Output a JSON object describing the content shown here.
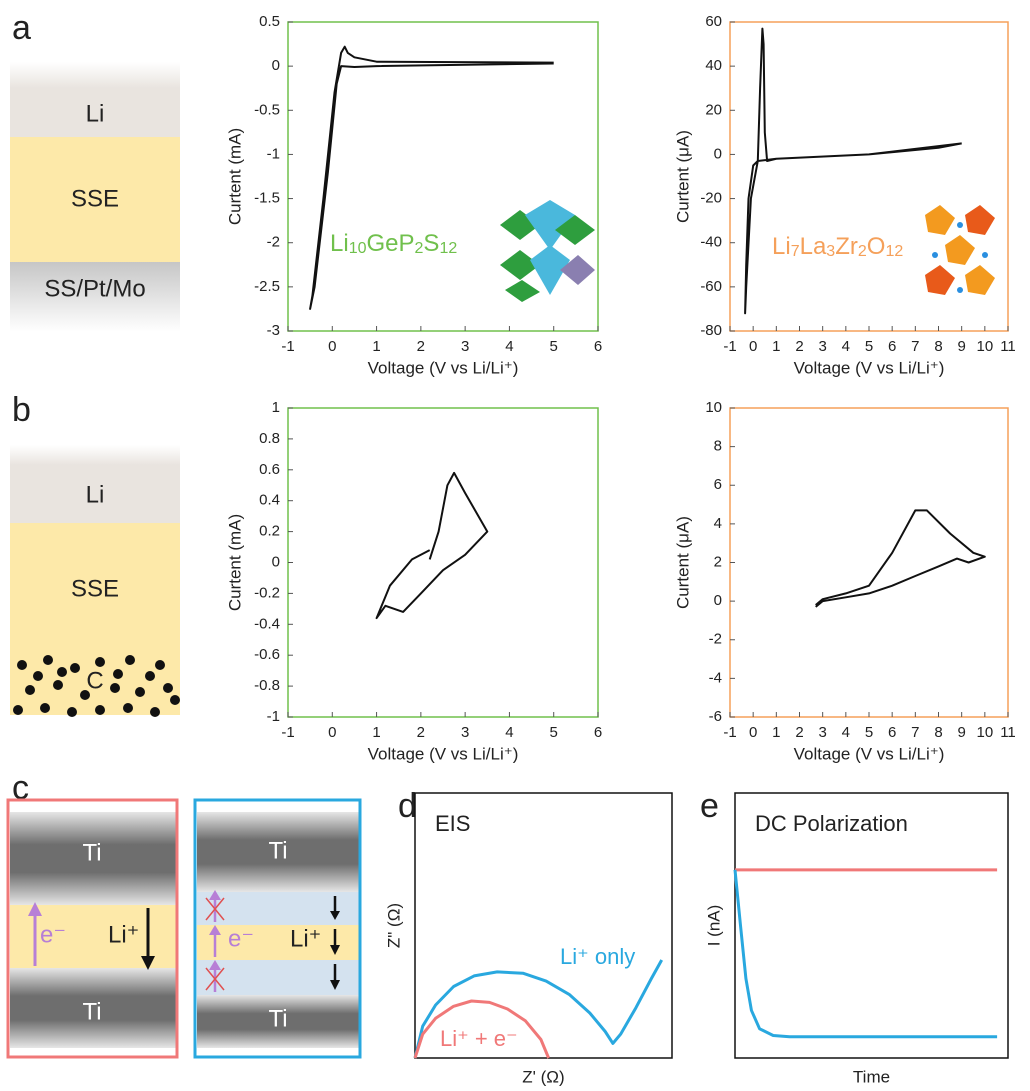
{
  "chart_data": [
    {
      "type": "line",
      "xlabel": "Voltage (V vs Li/Li⁺)",
      "ylabel": "Curtent (mA)",
      "frame_color": "#70c04c",
      "inset_formula": [
        "Li",
        "10",
        "GeP",
        "2",
        "S",
        "12"
      ],
      "xlim": [
        -1,
        6
      ],
      "ylim": [
        -3,
        0.5
      ],
      "xticks": [
        -1,
        0,
        1,
        2,
        3,
        4,
        5,
        6
      ],
      "yticks": [
        -3,
        -2.5,
        -2,
        -1.5,
        -1,
        -0.5,
        0,
        0.5
      ],
      "series": [
        {
          "color": "#111111",
          "x": [
            5,
            1,
            0.5,
            0.35,
            0.28,
            0.2,
            0.05,
            -0.2,
            -0.45,
            -0.5,
            -0.4,
            -0.1,
            0.1,
            0.2,
            0.5,
            1,
            5
          ],
          "values": [
            0.04,
            0.05,
            0.1,
            0.15,
            0.22,
            0.15,
            -0.3,
            -1.5,
            -2.6,
            -2.75,
            -2.5,
            -1.2,
            -0.2,
            0,
            -0.01,
            0,
            0.03
          ]
        }
      ]
    },
    {
      "type": "line",
      "xlabel": "Voltage (V vs Li/Li⁺)",
      "ylabel": "Curtent (μA)",
      "frame_color": "#f5a05a",
      "inset_formula": [
        "Li",
        "7",
        "La",
        "3",
        "Zr",
        "2",
        "O",
        "12"
      ],
      "xlim": [
        -1,
        11
      ],
      "ylim": [
        -80,
        60
      ],
      "xticks": [
        -1,
        0,
        1,
        2,
        3,
        4,
        5,
        6,
        7,
        8,
        9,
        10,
        11
      ],
      "yticks": [
        -80,
        -60,
        -40,
        -20,
        0,
        20,
        40,
        60
      ],
      "series": [
        {
          "color": "#111111",
          "x": [
            9,
            5,
            1,
            0.6,
            0.5,
            0.45,
            0.4,
            0.3,
            0.2,
            0,
            -0.2,
            -0.3,
            -0.35,
            -0.3,
            -0.1,
            0.2,
            1,
            5,
            8,
            9
          ],
          "values": [
            5,
            0,
            -2,
            -3,
            10,
            50,
            57,
            30,
            -3,
            -5,
            -20,
            -50,
            -72,
            -60,
            -20,
            -3,
            -2,
            0,
            3,
            5
          ]
        }
      ]
    },
    {
      "type": "line",
      "xlabel": "Voltage (V vs Li/Li⁺)",
      "ylabel": "Curtent (mA)",
      "frame_color": "#70c04c",
      "xlim": [
        -1,
        6
      ],
      "ylim": [
        -1,
        1
      ],
      "xticks": [
        -1,
        0,
        1,
        2,
        3,
        4,
        5,
        6
      ],
      "yticks": [
        -1,
        -0.8,
        -0.6,
        -0.4,
        -0.2,
        0,
        0.2,
        0.4,
        0.6,
        0.8,
        1
      ],
      "series": [
        {
          "color": "#111111",
          "x": [
            2.2,
            1.8,
            1.3,
            1.0,
            1.2,
            1.6,
            2.0,
            2.5,
            3.0,
            3.5,
            3.3,
            3.0,
            2.75,
            2.6,
            2.4,
            2.2
          ],
          "values": [
            0.08,
            0.02,
            -0.15,
            -0.36,
            -0.28,
            -0.32,
            -0.2,
            -0.05,
            0.05,
            0.2,
            0.3,
            0.45,
            0.58,
            0.5,
            0.2,
            0.02
          ]
        }
      ]
    },
    {
      "type": "line",
      "xlabel": "Voltage (V vs Li/Li⁺)",
      "ylabel": "Curtent (μA)",
      "frame_color": "#f5a05a",
      "xlim": [
        -1,
        11
      ],
      "ylim": [
        -6,
        10
      ],
      "xticks": [
        -1,
        0,
        1,
        2,
        3,
        4,
        5,
        6,
        7,
        8,
        9,
        10,
        11
      ],
      "yticks": [
        -6,
        -4,
        -2,
        0,
        2,
        4,
        6,
        8,
        10
      ],
      "series": [
        {
          "color": "#111111",
          "x": [
            2.7,
            3,
            4,
            5,
            6,
            7,
            8,
            8.8,
            9.3,
            10,
            9.5,
            8.5,
            7.5,
            7,
            6,
            5,
            4,
            3,
            2.7
          ],
          "values": [
            -0.3,
            0,
            0.2,
            0.4,
            0.8,
            1.3,
            1.8,
            2.2,
            2.0,
            2.3,
            2.5,
            3.5,
            4.7,
            4.7,
            2.5,
            0.8,
            0.4,
            0.1,
            -0.2
          ]
        }
      ]
    },
    {
      "type": "line",
      "title": "EIS",
      "xlabel": "Z' (Ω)",
      "ylabel": "Z\" (Ω)",
      "frame_color": "#111111",
      "xlim": [
        0,
        10
      ],
      "ylim": [
        0,
        10
      ],
      "series": [
        {
          "name": "Li⁺ only",
          "color": "#29a8df",
          "x": [
            0,
            0.3,
            0.8,
            1.5,
            2.3,
            3.2,
            4.2,
            5.1,
            6.0,
            6.8,
            7.4,
            7.7,
            8.0,
            8.6,
            9.2,
            9.6
          ],
          "values": [
            0,
            1.2,
            2.0,
            2.7,
            3.1,
            3.25,
            3.2,
            2.9,
            2.4,
            1.7,
            1.0,
            0.55,
            0.9,
            1.9,
            3.0,
            3.7
          ]
        },
        {
          "name": "Li⁺ + e⁻",
          "color": "#f07878",
          "x": [
            0,
            0.3,
            0.8,
            1.5,
            2.2,
            2.9,
            3.6,
            4.3,
            4.9,
            5.2
          ],
          "values": [
            0,
            0.9,
            1.5,
            1.95,
            2.15,
            2.1,
            1.85,
            1.4,
            0.7,
            0
          ]
        }
      ]
    },
    {
      "type": "line",
      "title": "DC Polarization",
      "xlabel": "Time",
      "ylabel": "I (nA)",
      "frame_color": "#111111",
      "xlim": [
        0,
        10
      ],
      "ylim": [
        0,
        10
      ],
      "series": [
        {
          "color": "#f07878",
          "x": [
            0,
            9.6
          ],
          "values": [
            7.1,
            7.1
          ]
        },
        {
          "color": "#29a8df",
          "x": [
            0,
            0.2,
            0.4,
            0.6,
            0.9,
            1.4,
            2,
            9.6
          ],
          "values": [
            7.1,
            5,
            3,
            1.8,
            1.1,
            0.85,
            0.8,
            0.8
          ]
        }
      ]
    }
  ],
  "diagrams": {
    "panel_labels": [
      "a",
      "b",
      "c",
      "d",
      "e"
    ],
    "cell_a": [
      "Li",
      "SSE",
      "SS/Pt/Mo"
    ],
    "cell_b": [
      "Li",
      "SSE",
      "C"
    ],
    "cell_c_left": [
      "Ti",
      "e⁻",
      "Li⁺",
      "Ti"
    ],
    "cell_c_right": [
      "Ti",
      "e⁻",
      "Li⁺",
      "Ti"
    ]
  }
}
